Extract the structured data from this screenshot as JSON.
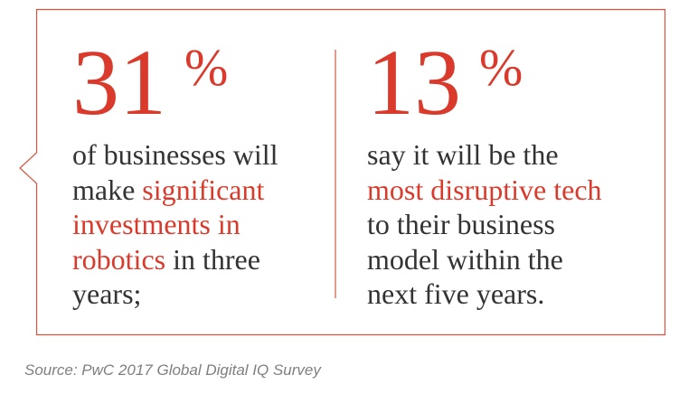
{
  "stats": [
    {
      "number": "31",
      "unit": "%",
      "lines": [
        [
          {
            "text": "of businesses will",
            "color": "#333333"
          }
        ],
        [
          {
            "text": "make ",
            "color": "#333333"
          },
          {
            "text": "significant",
            "color": "#d93a2b"
          }
        ],
        [
          {
            "text": "investments in",
            "color": "#d93a2b"
          }
        ],
        [
          {
            "text": "robotics",
            "color": "#d93a2b"
          },
          {
            "text": " in three",
            "color": "#333333"
          }
        ],
        [
          {
            "text": "years;",
            "color": "#333333"
          }
        ]
      ]
    },
    {
      "number": "13",
      "unit": "%",
      "lines": [
        [
          {
            "text": "say it will be the",
            "color": "#333333"
          }
        ],
        [
          {
            "text": "most disruptive tech",
            "color": "#d93a2b"
          }
        ],
        [
          {
            "text": "to their business",
            "color": "#333333"
          }
        ],
        [
          {
            "text": "model within the",
            "color": "#333333"
          }
        ],
        [
          {
            "text": "next five years.",
            "color": "#333333"
          }
        ]
      ]
    }
  ],
  "source": "Source: PwC 2017 Global Digital IQ Survey"
}
